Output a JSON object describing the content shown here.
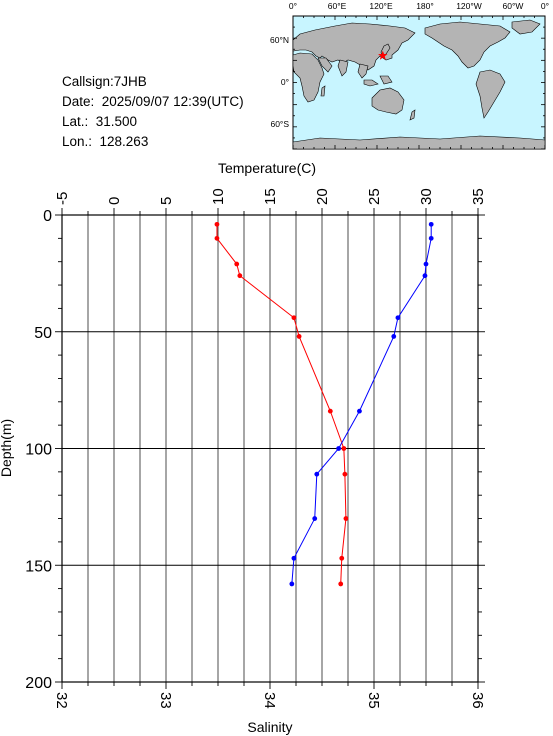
{
  "header": {
    "callsign": "Callsign:7JHB",
    "date": "Date:  2025/09/07 12:39(UTC)",
    "lat": "Lat.:  31.500",
    "lon": "Lon.:  128.263"
  },
  "map": {
    "lon_labels": [
      "0°",
      "60°E",
      "120°E",
      "180°",
      "120°W",
      "60°W",
      "0°"
    ],
    "lat_labels": [
      "60°N",
      "0°",
      "60°S"
    ],
    "station": {
      "lat": 31.5,
      "lon": 128.263
    },
    "colors": {
      "ocean": "#c8f5ff",
      "land": "#b4b4b4",
      "marker": "#ff0000"
    }
  },
  "chart_data": {
    "type": "line",
    "title": "",
    "xlabel_top": "Temperature(C)",
    "xlabel_bottom": "Salinity",
    "ylabel": "Depth(m)",
    "temperature_axis": {
      "range": [
        -5,
        35
      ],
      "ticks": [
        "-5",
        "0",
        "5",
        "10",
        "15",
        "20",
        "25",
        "30",
        "35"
      ]
    },
    "salinity_axis": {
      "range": [
        32,
        36
      ],
      "ticks": [
        "32",
        "33",
        "34",
        "35",
        "36"
      ]
    },
    "depth_axis": {
      "range": [
        0,
        200
      ],
      "ticks": [
        "0",
        "50",
        "100",
        "150",
        "200"
      ],
      "inverted": true
    },
    "grid": true,
    "series": [
      {
        "quantity": "temperature",
        "color": "#ff0000",
        "points": [
          {
            "value": 9.9,
            "depth": 4
          },
          {
            "value": 9.9,
            "depth": 10
          },
          {
            "value": 11.8,
            "depth": 21
          },
          {
            "value": 12.1,
            "depth": 26
          },
          {
            "value": 17.3,
            "depth": 44
          },
          {
            "value": 17.8,
            "depth": 52
          },
          {
            "value": 20.8,
            "depth": 84
          },
          {
            "value": 22.1,
            "depth": 100
          },
          {
            "value": 22.2,
            "depth": 111
          },
          {
            "value": 22.3,
            "depth": 130
          },
          {
            "value": 21.9,
            "depth": 147
          },
          {
            "value": 21.8,
            "depth": 158
          }
        ]
      },
      {
        "quantity": "salinity",
        "color": "#0000ff",
        "points": [
          {
            "value": 35.55,
            "depth": 4
          },
          {
            "value": 35.55,
            "depth": 10
          },
          {
            "value": 35.5,
            "depth": 21
          },
          {
            "value": 35.49,
            "depth": 26
          },
          {
            "value": 35.23,
            "depth": 44
          },
          {
            "value": 35.19,
            "depth": 52
          },
          {
            "value": 34.86,
            "depth": 84
          },
          {
            "value": 34.66,
            "depth": 100
          },
          {
            "value": 34.45,
            "depth": 111
          },
          {
            "value": 34.43,
            "depth": 130
          },
          {
            "value": 34.23,
            "depth": 147
          },
          {
            "value": 34.21,
            "depth": 158
          }
        ]
      }
    ]
  }
}
